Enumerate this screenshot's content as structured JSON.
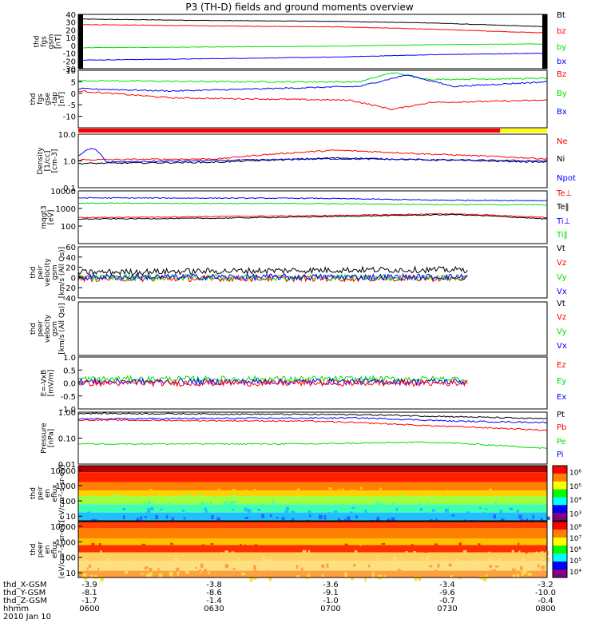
{
  "title": "P3 (TH-D) fields and ground moments overview",
  "colors": {
    "black": "#000000",
    "red": "#ff0000",
    "green": "#00e000",
    "blue": "#0000ff",
    "yellow": "#ffff00"
  },
  "chart_data": [
    {
      "type": "line",
      "panel": "fgs_gsm",
      "ylabel": [
        "thd",
        "fgs",
        "gsm",
        "[nT]"
      ],
      "ylim": [
        -30,
        40
      ],
      "yticks": [
        {
          "v": 40,
          "label": "40"
        },
        {
          "v": 30,
          "label": "30"
        },
        {
          "v": 20,
          "label": "20"
        },
        {
          "v": 10,
          "label": "10"
        },
        {
          "v": 0,
          "label": "0"
        },
        {
          "v": -10,
          "label": "-10"
        },
        {
          "v": -20,
          "label": "-20"
        },
        {
          "v": -30,
          "label": "-30"
        }
      ],
      "legend": [
        "Bt",
        "bz",
        "by",
        "bx"
      ],
      "series": [
        {
          "name": "Bt",
          "color": "black",
          "points": [
            [
              0,
              34
            ],
            [
              0.3,
              32
            ],
            [
              0.55,
              31
            ],
            [
              0.75,
              29
            ],
            [
              1,
              24
            ]
          ]
        },
        {
          "name": "bz",
          "color": "red",
          "points": [
            [
              0,
              27
            ],
            [
              0.3,
              25
            ],
            [
              0.55,
              24
            ],
            [
              0.75,
              21
            ],
            [
              1,
              16
            ]
          ]
        },
        {
          "name": "by",
          "color": "green",
          "points": [
            [
              0,
              -3
            ],
            [
              0.3,
              -2
            ],
            [
              0.55,
              -1
            ],
            [
              0.75,
              1
            ],
            [
              1,
              2
            ]
          ]
        },
        {
          "name": "bx",
          "color": "blue",
          "points": [
            [
              0,
              -19
            ],
            [
              0.3,
              -17
            ],
            [
              0.55,
              -15
            ],
            [
              0.75,
              -12
            ],
            [
              1,
              -10
            ]
          ]
        }
      ]
    },
    {
      "type": "line",
      "panel": "fgs_gse",
      "ylabel": [
        "thd",
        "fgs",
        "gse",
        "-tap",
        "[nT]"
      ],
      "ylim": [
        -15,
        10
      ],
      "yticks": [
        {
          "v": 10,
          "label": "10"
        },
        {
          "v": 5,
          "label": "5"
        },
        {
          "v": 0,
          "label": "0"
        },
        {
          "v": -5,
          "label": "-5"
        },
        {
          "v": -10,
          "label": "-10"
        }
      ],
      "legend": [
        "Bz",
        "By",
        "Bx"
      ],
      "series": [
        {
          "name": "By",
          "color": "green",
          "points": [
            [
              0,
              5.5
            ],
            [
              0.35,
              5
            ],
            [
              0.6,
              5
            ],
            [
              0.67,
              9
            ],
            [
              0.75,
              6
            ],
            [
              1,
              6.5
            ]
          ]
        },
        {
          "name": "Bx",
          "color": "blue",
          "points": [
            [
              0,
              2
            ],
            [
              0.2,
              1
            ],
            [
              0.4,
              2
            ],
            [
              0.6,
              3
            ],
            [
              0.7,
              8
            ],
            [
              0.8,
              3
            ],
            [
              1,
              5
            ]
          ]
        },
        {
          "name": "Bz",
          "color": "red",
          "points": [
            [
              0,
              1
            ],
            [
              0.2,
              -2
            ],
            [
              0.4,
              -2.5
            ],
            [
              0.58,
              -3
            ],
            [
              0.67,
              -7
            ],
            [
              0.75,
              -4
            ],
            [
              1,
              -3
            ]
          ]
        }
      ]
    },
    {
      "type": "line",
      "panel": "density",
      "ylabel": [
        "Density",
        "[1/cc]",
        "[cm-3]"
      ],
      "ylim": [
        0.1,
        10
      ],
      "log": true,
      "yticks": [
        {
          "v": 10,
          "label": "10.0"
        },
        {
          "v": 1,
          "label": "1.0"
        },
        {
          "v": 0.1,
          "label": "0.1"
        }
      ],
      "legend": [
        "Ne",
        "Ni",
        "Npot"
      ],
      "series": [
        {
          "name": "Ne",
          "color": "red",
          "points": [
            [
              0,
              1.1
            ],
            [
              0.3,
              1.2
            ],
            [
              0.55,
              2.5
            ],
            [
              0.75,
              1.8
            ],
            [
              1,
              1.2
            ]
          ]
        },
        {
          "name": "Ni",
          "color": "black",
          "points": [
            [
              0,
              0.8
            ],
            [
              0.3,
              0.9
            ],
            [
              0.55,
              1.3
            ],
            [
              0.75,
              1.1
            ],
            [
              1,
              0.9
            ]
          ]
        },
        {
          "name": "Npot",
          "color": "blue",
          "points": [
            [
              0,
              1.6
            ],
            [
              0.03,
              3
            ],
            [
              0.06,
              0.9
            ],
            [
              0.55,
              1.2
            ],
            [
              1,
              1
            ]
          ]
        }
      ]
    },
    {
      "type": "line",
      "panel": "temperature",
      "ylabel": [
        "mqgt3",
        "[eV]"
      ],
      "ylim": [
        10,
        10000
      ],
      "log": true,
      "yticks": [
        {
          "v": 10000,
          "label": "10000"
        },
        {
          "v": 1000,
          "label": "1000"
        },
        {
          "v": 100,
          "label": "100"
        }
      ],
      "legend": [
        "Te⊥",
        "Te‖",
        "Ti⊥",
        "Ti‖"
      ],
      "series": [
        {
          "name": "Ti⊥",
          "color": "blue",
          "points": [
            [
              0,
              4000
            ],
            [
              0.5,
              3800
            ],
            [
              0.75,
              3000
            ],
            [
              1,
              2800
            ]
          ]
        },
        {
          "name": "Ti‖",
          "color": "green",
          "points": [
            [
              0,
              2000
            ],
            [
              0.5,
              1900
            ],
            [
              0.75,
              1700
            ],
            [
              1,
              1600
            ]
          ]
        },
        {
          "name": "Te⊥",
          "color": "red",
          "points": [
            [
              0,
              300
            ],
            [
              0.3,
              350
            ],
            [
              0.55,
              400
            ],
            [
              0.8,
              500
            ],
            [
              1,
              300
            ]
          ]
        },
        {
          "name": "Te‖",
          "color": "black",
          "points": [
            [
              0,
              250
            ],
            [
              0.3,
              280
            ],
            [
              0.55,
              350
            ],
            [
              0.8,
              450
            ],
            [
              1,
              250
            ]
          ]
        }
      ]
    },
    {
      "type": "line",
      "panel": "peir_velocity",
      "ylabel": [
        "thd",
        "peir",
        "velocity",
        "gsm",
        "[km/s (All Qs)]"
      ],
      "ylim": [
        -40,
        60
      ],
      "yticks": [
        {
          "v": 60,
          "label": "60"
        },
        {
          "v": 40,
          "label": "40"
        },
        {
          "v": 20,
          "label": "20"
        },
        {
          "v": 0,
          "label": "0"
        },
        {
          "v": -20,
          "label": "-20"
        },
        {
          "v": -40,
          "label": "-40"
        }
      ],
      "legend": [
        "Vt",
        "Vz",
        "Vy",
        "Vx"
      ],
      "x_end": 0.83,
      "series": [
        {
          "name": "Vt",
          "color": "black",
          "points": [
            [
              0,
              10
            ],
            [
              0.6,
              15
            ],
            [
              0.83,
              15
            ]
          ]
        },
        {
          "name": "Vz",
          "color": "red",
          "points": [
            [
              0,
              -2
            ],
            [
              0.83,
              -2
            ]
          ]
        },
        {
          "name": "Vy",
          "color": "green",
          "points": [
            [
              0,
              0
            ],
            [
              0.83,
              0
            ]
          ]
        },
        {
          "name": "Vx",
          "color": "blue",
          "points": [
            [
              0,
              1
            ],
            [
              0.83,
              1
            ]
          ]
        }
      ]
    },
    {
      "type": "line",
      "panel": "peer_velocity",
      "ylabel": [
        "thd",
        "peer",
        "velocity",
        "gsm",
        "[km/s (All Qs)]"
      ],
      "legend": [
        "Vt",
        "Vz",
        "Vy",
        "Vx"
      ],
      "series": []
    },
    {
      "type": "line",
      "panel": "efield",
      "ylabel": [
        "E=-VxB",
        "[mV/m]"
      ],
      "ylim": [
        -1,
        1
      ],
      "yticks": [
        {
          "v": 1,
          "label": "1.0"
        },
        {
          "v": 0.5,
          "label": "0.5"
        },
        {
          "v": 0,
          "label": "0.0"
        },
        {
          "v": -0.5,
          "label": "-0.5"
        },
        {
          "v": -1,
          "label": "-1.0"
        }
      ],
      "legend": [
        "Ez",
        "Ey",
        "Ex"
      ],
      "x_end": 0.83,
      "series": [
        {
          "name": "Ey",
          "color": "green",
          "points": [
            [
              0,
              0.15
            ],
            [
              0.83,
              0.15
            ]
          ]
        },
        {
          "name": "Ex",
          "color": "blue",
          "points": [
            [
              0,
              0.05
            ],
            [
              0.83,
              0.05
            ]
          ]
        },
        {
          "name": "Ez",
          "color": "red",
          "points": [
            [
              0,
              0
            ],
            [
              0.83,
              0
            ]
          ]
        }
      ]
    },
    {
      "type": "line",
      "panel": "pressure",
      "ylabel": [
        "Pressure",
        "[nPa]"
      ],
      "ylim": [
        0.01,
        1
      ],
      "log": true,
      "yticks": [
        {
          "v": 1,
          "label": "1.00"
        },
        {
          "v": 0.1,
          "label": "0.10"
        },
        {
          "v": 0.01,
          "label": "0.01"
        }
      ],
      "legend": [
        "Pt",
        "Pb",
        "Pe",
        "Pi"
      ],
      "series": [
        {
          "name": "Pt",
          "color": "black",
          "points": [
            [
              0,
              0.9
            ],
            [
              0.6,
              0.8
            ],
            [
              1,
              0.55
            ]
          ]
        },
        {
          "name": "Pi",
          "color": "blue",
          "points": [
            [
              0,
              0.55
            ],
            [
              0.6,
              0.6
            ],
            [
              0.8,
              0.45
            ],
            [
              1,
              0.4
            ]
          ]
        },
        {
          "name": "Pb",
          "color": "red",
          "points": [
            [
              0,
              0.5
            ],
            [
              0.5,
              0.45
            ],
            [
              0.75,
              0.3
            ],
            [
              1,
              0.2
            ]
          ]
        },
        {
          "name": "Pe",
          "color": "green",
          "points": [
            [
              0,
              0.06
            ],
            [
              0.5,
              0.06
            ],
            [
              0.75,
              0.07
            ],
            [
              1,
              0.04
            ]
          ]
        }
      ]
    },
    {
      "type": "heatmap",
      "panel": "peir_spec",
      "ylabel": [
        "thd",
        "peir",
        "en",
        "eflux",
        "(eV/cm²-s-sr-eV)"
      ],
      "ylim": [
        5,
        20000
      ],
      "log": true,
      "yticks": [
        {
          "v": 10000,
          "label": "10000"
        },
        {
          "v": 1000,
          "label": "1000"
        },
        {
          "v": 100,
          "label": "100"
        },
        {
          "v": 10,
          "label": "10"
        }
      ],
      "colorbar_ticks": [
        "10⁶",
        "10⁵",
        "10⁴",
        "10³"
      ]
    },
    {
      "type": "heatmap",
      "panel": "peer_spec",
      "ylabel": [
        "thd",
        "peer",
        "en",
        "eflux",
        "(eV/cm²-s-sr-eV)"
      ],
      "ylim": [
        5,
        20000
      ],
      "log": true,
      "yticks": [
        {
          "v": 10000,
          "label": "10000"
        },
        {
          "v": 1000,
          "label": "1000"
        },
        {
          "v": 100,
          "label": "100"
        },
        {
          "v": 10,
          "label": "10"
        }
      ],
      "colorbar_ticks": [
        "10⁸",
        "10⁷",
        "10⁶",
        "10⁵",
        "10⁴"
      ]
    }
  ],
  "xaxis": {
    "rows": [
      {
        "label": "thd_X-GSM",
        "values": [
          "-3.9",
          "-3.8",
          "-3.6",
          "-3.4",
          "-3.2"
        ]
      },
      {
        "label": "thd_Y-GSM",
        "values": [
          "-8.1",
          "-8.6",
          "-9.1",
          "-9.6",
          "-10.0"
        ]
      },
      {
        "label": "thd_Z-GSM",
        "values": [
          "-1.7",
          "-1.4",
          "-1.0",
          "-0.7",
          "-0.4"
        ]
      },
      {
        "label": "hhmm",
        "values": [
          "0600",
          "0630",
          "0700",
          "0730",
          "0800"
        ]
      }
    ],
    "date": "2010 Jan 10"
  }
}
